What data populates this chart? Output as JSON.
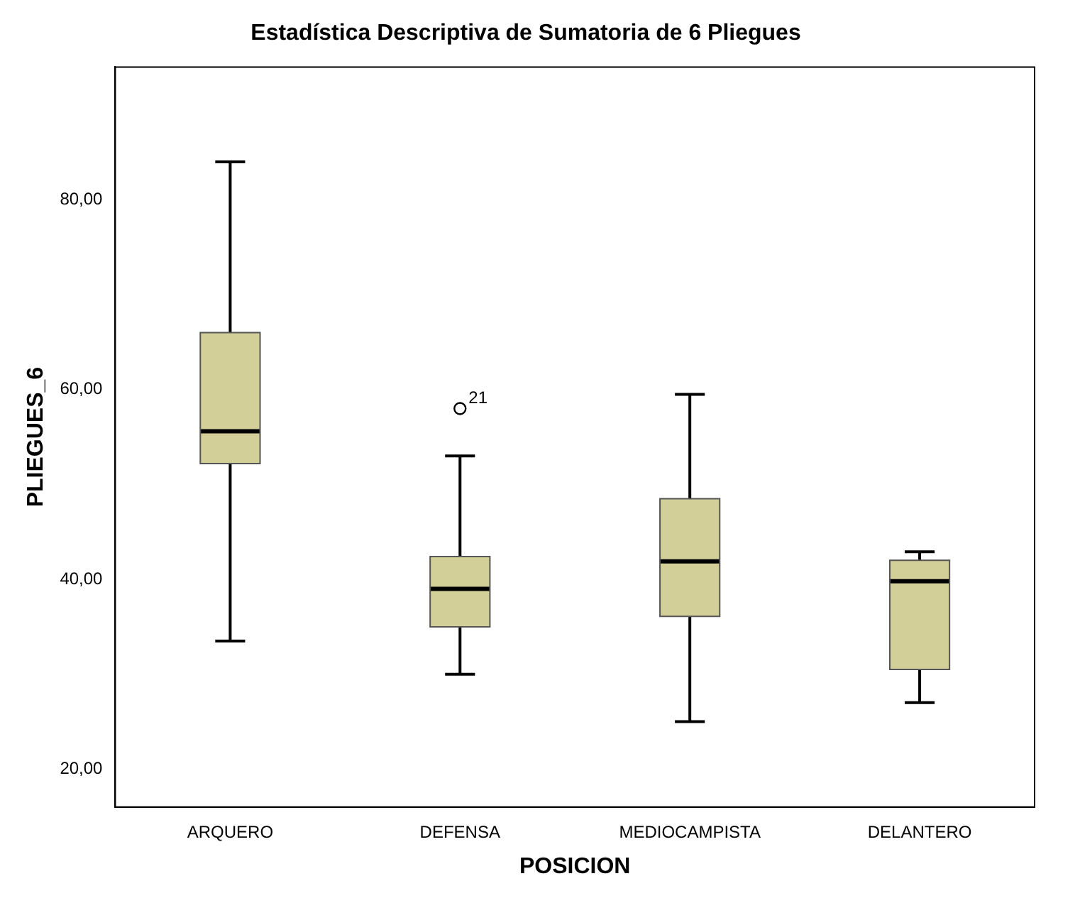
{
  "chart_data": {
    "type": "box",
    "title": "Estadística Descriptiva de Sumatoria de 6 Pliegues",
    "xlabel": "POSICION",
    "ylabel": "PLIEGUES_6",
    "categories": [
      "ARQUERO",
      "DEFENSA",
      "MEDIOCAMPISTA",
      "DELANTERO"
    ],
    "color": "#d3cf98",
    "boxes": [
      {
        "low": 33.5,
        "q1": 52.2,
        "median": 55.6,
        "q3": 66.0,
        "high": 84.0
      },
      {
        "low": 30.0,
        "q1": 35.0,
        "median": 39.0,
        "q3": 42.4,
        "high": 53.0,
        "outliers": [
          58
        ]
      },
      {
        "low": 25.0,
        "q1": 36.1,
        "median": 41.9,
        "q3": 48.5,
        "high": 59.5
      },
      {
        "low": 27.0,
        "q1": 30.5,
        "median": 39.8,
        "q3": 42.0,
        "high": 42.9
      }
    ],
    "ylim": [
      16,
      94
    ],
    "yticks": [
      {
        "value": 20,
        "label": "20,00"
      },
      {
        "value": 40,
        "label": "40,00"
      },
      {
        "value": 60,
        "label": "60,00"
      },
      {
        "value": 80,
        "label": "80,00"
      }
    ],
    "annotations": [
      "21"
    ],
    "grid": false,
    "legend": false
  }
}
